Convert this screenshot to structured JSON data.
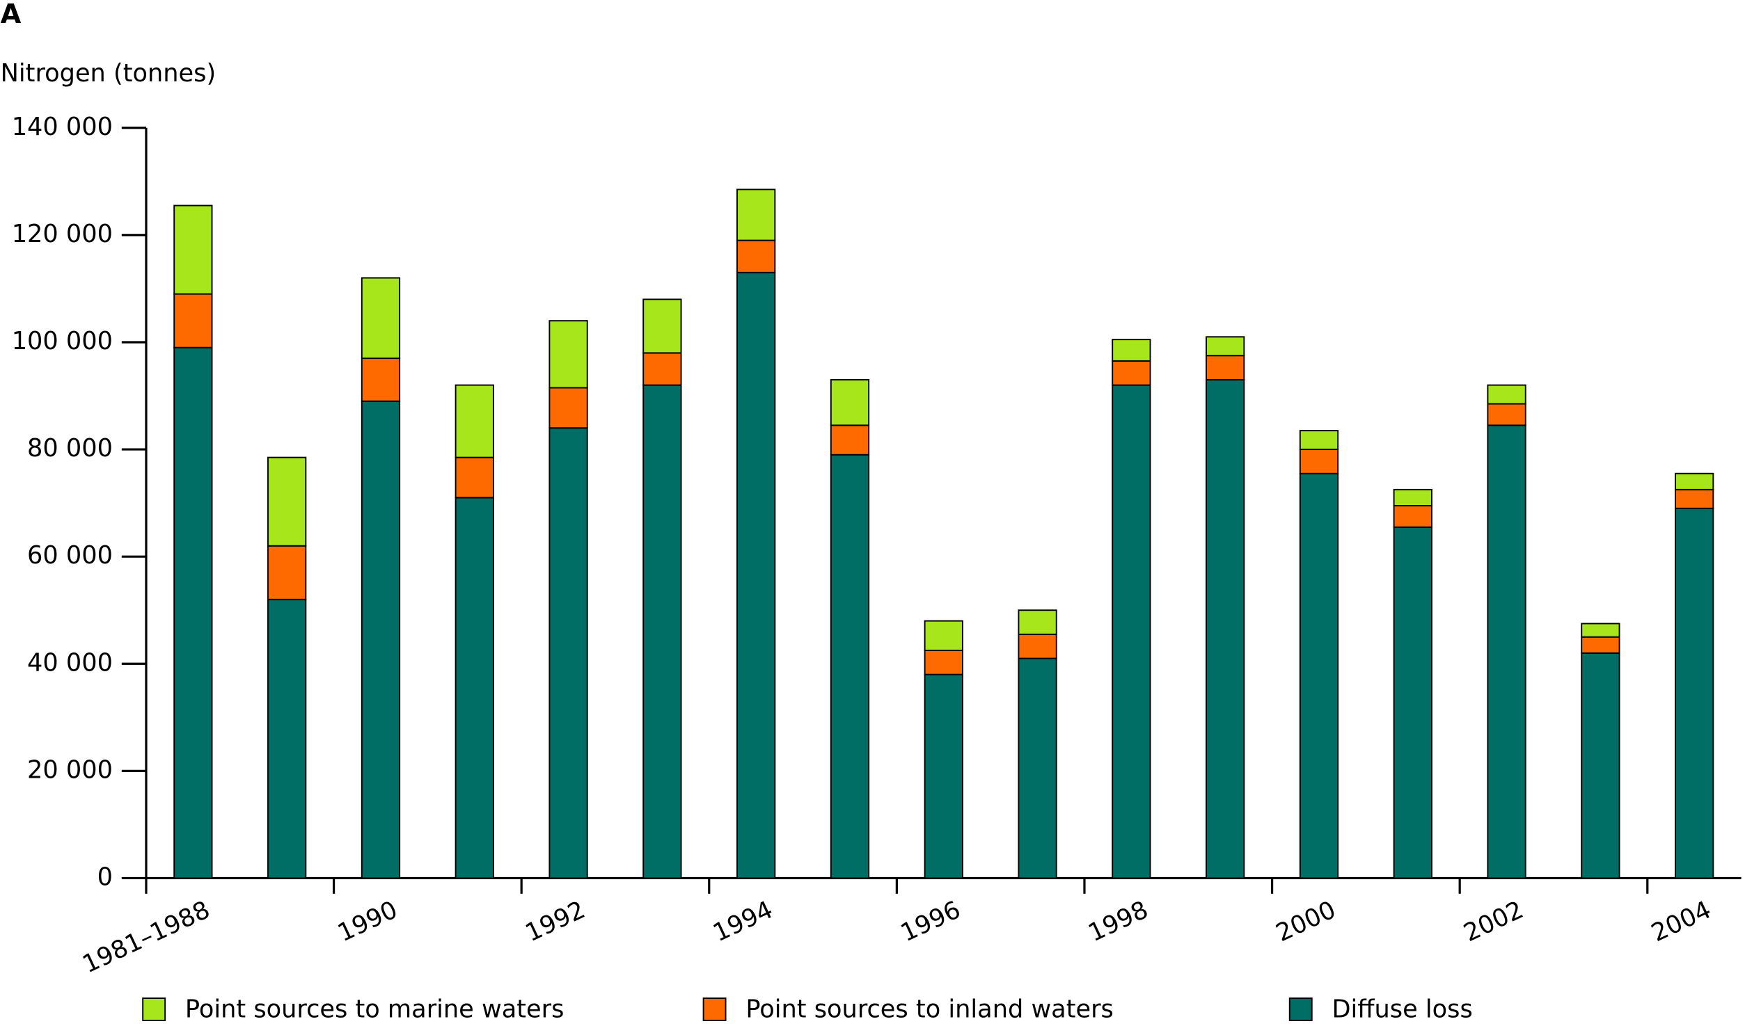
{
  "chart_data": {
    "type": "stacked-bar",
    "panel_label": "A",
    "y_label": "Nitrogen (tonnes)",
    "categories": [
      "1981–1988",
      null,
      "1990",
      null,
      "1992",
      null,
      "1994",
      null,
      "1996",
      null,
      "1998",
      null,
      "2000",
      null,
      "2002",
      null,
      "2004"
    ],
    "series": [
      {
        "name": "Point sources to marine waters",
        "color": "#a6e61a",
        "values": [
          16500,
          16500,
          15000,
          13500,
          12500,
          10000,
          9500,
          8500,
          5500,
          4500,
          4000,
          3500,
          3500,
          3000,
          3500,
          2500,
          3000
        ]
      },
      {
        "name": "Point sources to inland waters",
        "color": "#ff6a00",
        "values": [
          10000,
          10000,
          8000,
          7500,
          7500,
          6000,
          6000,
          5500,
          4500,
          4500,
          4500,
          4500,
          4500,
          4000,
          4000,
          3000,
          3500
        ]
      },
      {
        "name": "Diffuse loss",
        "color": "#006e64",
        "values": [
          99000,
          52000,
          89000,
          71000,
          84000,
          92000,
          113000,
          79000,
          38000,
          41000,
          92000,
          93000,
          75500,
          65500,
          84500,
          42000,
          69000
        ]
      }
    ],
    "ylim": [
      0,
      140000
    ],
    "yticks": [
      0,
      {
        "value": 20000,
        "label": "20 000"
      },
      {
        "value": 40000,
        "label": "40 000"
      },
      {
        "value": 60000,
        "label": "60 000"
      },
      {
        "value": 80000,
        "label": "80 000"
      },
      {
        "value": 100000,
        "label": "100 000"
      },
      {
        "value": 120000,
        "label": "120 000"
      },
      {
        "value": 140000,
        "label": "140 000"
      }
    ]
  }
}
